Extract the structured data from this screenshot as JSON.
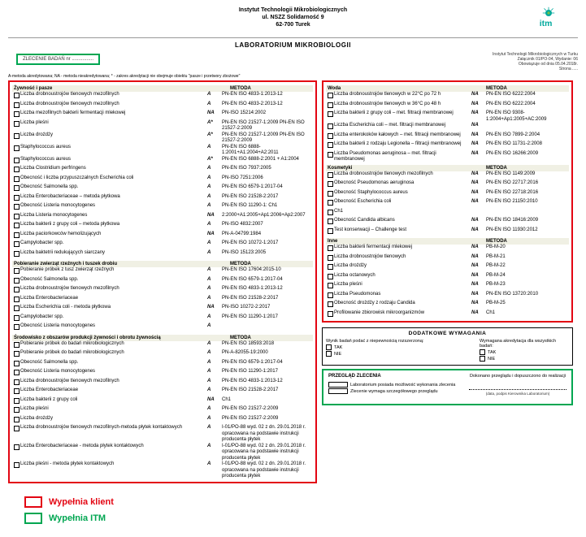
{
  "header": {
    "line1": "Instytut Technologii Mikrobiologicznych",
    "line2": "ul. NSZZ Solidarność 9",
    "line3": "62-700 Turek"
  },
  "logo": {
    "brand": "itm",
    "color": "#00a99d"
  },
  "title": "LABORATORIUM MIKROBIOLOGII",
  "doc_info": {
    "line1": "Instytut Technologii Mikrobiologicznych w Turku",
    "line2": "Załącznik 01/PO-04, Wydanie: 06",
    "line3": "Obowiązuje od dnia 05.04.2018r.",
    "line4": "Strona ....."
  },
  "order_label": "ZLECENIE BADAŃ nr ................",
  "footnote": "A-metoda akredytowana; NA - metoda nieakredytowana; * - zakres akredytacji nie obejmuje obiektu \"pasze i przetwory zbożowe\"",
  "method_label": "METODA",
  "left_sections": [
    {
      "title": "Żywność i pasze",
      "rows": [
        {
          "name": "Liczba drobnoustrojów tlenowych mezofilnych",
          "acc": "A",
          "method": "PN-EN ISO 4833-1:2013-12"
        },
        {
          "name": "Liczba drobnoustrojów tlenowych mezofilnych",
          "acc": "A",
          "method": "PN-EN ISO 4833-2:2013-12"
        },
        {
          "name": "Liczba mezofilnych bakterii fermentacji mlekowej",
          "acc": "NA",
          "method": "PN-ISO 15214:2002"
        },
        {
          "name": "Liczba pleśni",
          "acc": "A*",
          "method": "PN-EN ISO 21527-1:2009\nPN-EN ISO 21527-2:2009"
        },
        {
          "name": "Liczba drożdży",
          "acc": "A*",
          "method": "PN-EN ISO 21527-1:2009\nPN-EN ISO 21527-2:2009"
        },
        {
          "name": "Staphylococcus aureus",
          "acc": "A",
          "method": "PN-EN ISO 6888-1:2001+A1:2004+A2:2011"
        },
        {
          "name": "Staphylococcus aureus",
          "acc": "A*",
          "method": "PN-EN ISO 6888-2:2001 + A1:2004"
        },
        {
          "name": "Liczba Clostridium perfringens",
          "acc": "A",
          "method": "PN-EN ISO 7937:2005"
        },
        {
          "name": "Obecność i liczba przypuszczalnych Escherichia coli",
          "acc": "A",
          "method": "PN-ISO 7251:2006"
        },
        {
          "name": "Obecność Salmonella spp.",
          "acc": "A",
          "method": "PN-EN ISO 6579-1:2017-04"
        },
        {
          "name": "Liczba Enterobacteriaceae – metoda płytkowa",
          "acc": "A",
          "method": "PN-EN ISO 21528-2:2017"
        },
        {
          "name": "Obecność Listeria monocytogenes",
          "acc": "A",
          "method": "PN-EN ISO 11290-1:\nCh1"
        },
        {
          "name": "Liczba  Listeria monocytogenes",
          "acc": "NA",
          "method": "2:2000+A1:2005+Ap1:2006+Ap2:2007"
        },
        {
          "name": "Liczba bakterii z grupy coli – metoda płytkowa",
          "acc": "A",
          "method": "PN-ISO 4832:2007"
        },
        {
          "name": "Liczba paciorkowców hemolizujących",
          "acc": "NA",
          "method": "PN-A-04799:1984"
        },
        {
          "name": "Campylobacter spp.",
          "acc": "A",
          "method": "PN-EN ISO 10272-1:2017"
        },
        {
          "name": "Liczba baktetrii redukujących siarczany",
          "acc": "A",
          "method": "PN-ISO 15123:2005"
        }
      ]
    },
    {
      "title": "Pobieranie zwierząt rzeźnych i tuszek drobiu",
      "rows": [
        {
          "name": "Pobieranie próbek z tusz zwierząt rzeźnych",
          "acc": "A",
          "method": "PN-EN ISO 17604:2015-10"
        },
        {
          "name": "Obecność Salmonella spp.",
          "acc": "A",
          "method": "PN-EN ISO 6579-1:2017-04"
        },
        {
          "name": "Liczba drobnoustrojów tlenowych mezofilnych",
          "acc": "A",
          "method": "PN-EN ISO 4833-1:2013-12"
        },
        {
          "name": "Liczba Enterobacteriaceae",
          "acc": "A",
          "method": "PN-EN ISO 21528-2:2017"
        },
        {
          "name": "Liczba Escherichia coli - metoda płytkowa",
          "acc": "NA",
          "method": "PN-ISO 10272-2:2017"
        },
        {
          "name": "Campylobacter spp.",
          "acc": "A",
          "method": "PN-EN ISO 11290-1:2017"
        },
        {
          "name": "Obecność Listeria monocytogenes",
          "acc": "A",
          "method": ""
        }
      ]
    },
    {
      "title": "Środowisko z obszarów produkcji żywności i obrotu żywnością",
      "rows": [
        {
          "name": "Pobieranie próbek do badań mikrobiologicznych",
          "acc": "A",
          "method": "PN-EN ISO 18593:2018"
        },
        {
          "name": "Pobieranie próbek do badań mikrobiologicznych",
          "acc": "A",
          "method": "PN-A-82055-19:2000"
        },
        {
          "name": "Obecność Salmonella spp.",
          "acc": "A",
          "method": "PN-EN ISO 6579-1:2017-04"
        },
        {
          "name": "Obecność Listeria monocytogenes",
          "acc": "A",
          "method": "PN-EN ISO 11290-1:2017"
        },
        {
          "name": "Liczba drobnoustrojów tlenowych mezofilnych",
          "acc": "A",
          "method": "PN-EN ISO 4833-1:2013-12"
        },
        {
          "name": "Liczba Enterobacteriaceae",
          "acc": "A",
          "method": "PN-EN ISO 21528-2:2017"
        },
        {
          "name": "Liczba bakterii z grupy coli",
          "acc": "NA",
          "method": "Ch1"
        },
        {
          "name": "Liczba pleśni",
          "acc": "A",
          "method": "PN-EN ISO 21527-2:2009"
        },
        {
          "name": "Liczba drożdży",
          "acc": "A",
          "method": "PN-EN ISO 21527-2:2009"
        },
        {
          "name": "Liczba drobnoustrojów tlenowych mezofilnych-metoda płytek kontaktowych",
          "acc": "A",
          "method": "I-01/PO-88 wyd. 02 z dn. 29.01.2018 r. opracowana na podstawie instrukcji producenta płytek"
        },
        {
          "name": "Liczba Enterobacteriaceae - metoda płytek kontaktowych",
          "acc": "A",
          "method": "I-01/PO-88 wyd. 02 z dn. 29.01.2018 r. opracowana na podstawie instrukcji producenta płytek"
        },
        {
          "name": "Liczba pleśni - metoda płytek kontaktowych",
          "acc": "A",
          "method": "I-01/PO-88 wyd. 02 z dn. 29.01.2018 r. opracowana na podstawie instrukcji producenta płytek"
        }
      ]
    }
  ],
  "right_sections": [
    {
      "title": "Woda",
      "rows": [
        {
          "name": "Liczba drobnoustrojów tlenowych w 22°C po 72 h",
          "acc": "NA",
          "method": "PN-EN ISO 6222:2004"
        },
        {
          "name": "Liczba drobnoustrojów tlenowych w 36°C po 48 h",
          "acc": "NA",
          "method": "PN-EN ISO 6222:2004"
        },
        {
          "name": "Liczba bakterii z grupy coli – met. filtracji membranowej",
          "acc": "NA",
          "method": "PN-EN ISO 9308-\n1:2004+Ap1:2005+AC:2009"
        },
        {
          "name": "Liczba Escherichia coli – met. filtracji membranowej",
          "acc": "NA",
          "method": ""
        },
        {
          "name": "Liczba enterokoków kałowych – met. filtracji membranowej",
          "acc": "NA",
          "method": "PN-EN ISO 7899-2:2004"
        },
        {
          "name": "Liczba bakterii z rodzaju Legionella – filtracji membranowej",
          "acc": "NA",
          "method": "PN-EN ISO 11731-2:2008"
        },
        {
          "name": "Liczba Pseudomonas aeruginosa – met. filtracji membranowej",
          "acc": "NA",
          "method": "PN-EN ISO 16266:2009"
        }
      ]
    },
    {
      "title": "Kosmetyki",
      "rows": [
        {
          "name": "Liczba drobnoustrojów tlenowych mezofilnych",
          "acc": "NA",
          "method": "PN-EN ISO 1149:2009"
        },
        {
          "name": "Obecność Pseudomonas aeruginosa",
          "acc": "NA",
          "method": "PN-EN ISO 22717:2016"
        },
        {
          "name": "Obecność Staphylococcus aureus",
          "acc": "NA",
          "method": "PN-EN ISO 22718:2016"
        },
        {
          "name": "Obecność Escherichia coli",
          "acc": "NA",
          "method": "PN-EN ISO 21150:2010"
        },
        {
          "name": "Ch1",
          "acc": "",
          "method": ""
        },
        {
          "name": "Obecność Candida albicans",
          "acc": "NA",
          "method": "PN-EN ISO 18416:2009"
        },
        {
          "name": "Test konserwacji – Challenge test",
          "acc": "NA",
          "method": "PN-EN ISO 11930:2012"
        }
      ]
    },
    {
      "title": "Inne",
      "rows": [
        {
          "name": "Liczba bakterii fermentacji mlekowej",
          "acc": "NA",
          "method": "PB-M-20"
        },
        {
          "name": "Liczba drobnoustrojów tlenowych",
          "acc": "NA",
          "method": "PB-M-21"
        },
        {
          "name": "Liczba drożdży",
          "acc": "NA",
          "method": "PB-M-22"
        },
        {
          "name": "Liczba octanowych",
          "acc": "NA",
          "method": "PB-M-24"
        },
        {
          "name": "Liczba pleśni",
          "acc": "NA",
          "method": "PB-M-23"
        },
        {
          "name": "Liczba Pseudomonas",
          "acc": "NA",
          "method": "PN-EN ISO 13720:2010"
        },
        {
          "name": "Obecność drożdży z rodzaju Candida",
          "acc": "NA",
          "method": "PB-M-25"
        },
        {
          "name": "Profilowanie zbiorowisk mikroorganizmów",
          "acc": "NA",
          "method": "Ch1"
        }
      ]
    }
  ],
  "extra": {
    "title": "DODATKOWE WYMAGANIA",
    "leftA": "Wynik badań podać z niepewnością rozszerzoną:",
    "tak": "TAK",
    "nie": "NIE",
    "rightA": "Wymagana akredytacja dla wszystkich badań:"
  },
  "review": {
    "title": "PRZEGLĄD ZLECENIA",
    "line1": "Laboratorium posiada  możliwość wykonania zlecenia",
    "line2": "Zlecenie wymaga szczegółowego przeglądu",
    "right_title": "Dokonano przeglądu i dopuszczono do realizacji",
    "sig_caption": "(data, podpis Kierownika Laboratorium)"
  },
  "legend": {
    "client": "Wypełnia klient",
    "itm": "Wypełnia ITM"
  }
}
